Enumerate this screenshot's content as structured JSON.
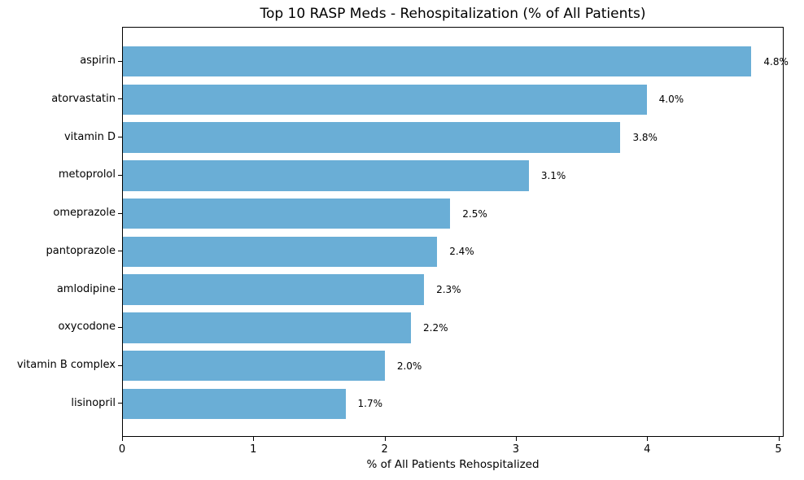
{
  "chart_data": {
    "type": "bar",
    "orientation": "horizontal",
    "title": "Top 10 RASP Meds - Rehospitalization (% of All Patients)",
    "xlabel": "% of All Patients Rehospitalized",
    "categories": [
      "aspirin",
      "atorvastatin",
      "vitamin D",
      "metoprolol",
      "omeprazole",
      "pantoprazole",
      "amlodipine",
      "oxycodone",
      "vitamin B complex",
      "lisinopril"
    ],
    "values": [
      4.8,
      4.0,
      3.8,
      3.1,
      2.5,
      2.4,
      2.3,
      2.2,
      2.0,
      1.7
    ],
    "bar_labels": [
      "4.8%",
      "4.0%",
      "3.8%",
      "3.1%",
      "2.5%",
      "2.4%",
      "2.3%",
      "2.2%",
      "2.0%",
      "1.7%"
    ],
    "xticks": [
      "0",
      "1",
      "2",
      "3",
      "4",
      "5"
    ],
    "xlim": [
      0,
      5.04
    ],
    "grid": false,
    "bar_color": "#6aaed6",
    "background_color": "#ffffff",
    "text_color": "#000000"
  }
}
